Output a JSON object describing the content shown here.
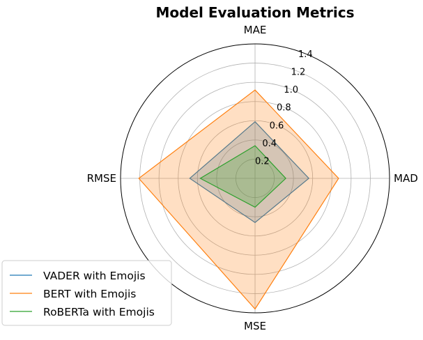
{
  "chart_data": {
    "type": "radar",
    "title": "Model Evaluation Metrics",
    "axes": [
      "MAE",
      "MAD",
      "MSE",
      "RMSE"
    ],
    "rlim": [
      0,
      1.4
    ],
    "rticks": [
      0.2,
      0.4,
      0.6,
      0.8,
      1.0,
      1.2,
      1.4
    ],
    "rtick_labels": [
      "0.2",
      "0.4",
      "0.6",
      "0.8",
      "1.0",
      "1.2",
      "1.4"
    ],
    "grid": true,
    "legend_position": "lower-left",
    "series": [
      {
        "name": "VADER with Emojis",
        "values": [
          0.59,
          0.56,
          0.46,
          0.68
        ],
        "color": "#1f77b4",
        "filled": true
      },
      {
        "name": "BERT with Emojis",
        "values": [
          0.92,
          0.87,
          1.36,
          1.21
        ],
        "color": "#ff7f0e",
        "filled": true
      },
      {
        "name": "RoBERTa with Emojis",
        "values": [
          0.34,
          0.32,
          0.3,
          0.57
        ],
        "color": "#2ca02c",
        "filled": true
      }
    ]
  }
}
